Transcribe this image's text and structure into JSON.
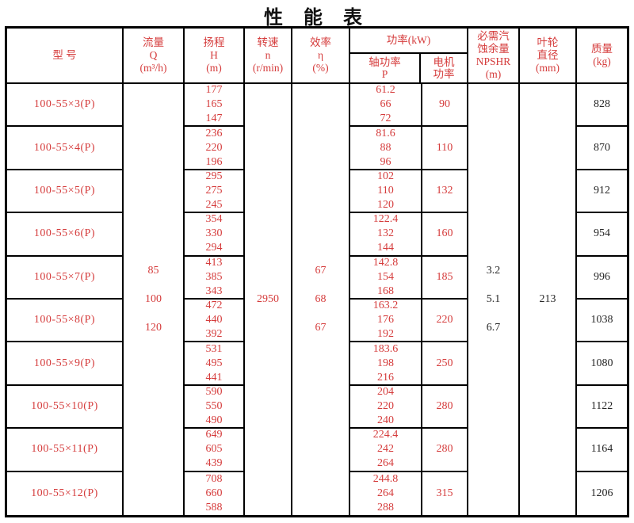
{
  "title": "性  能  表",
  "colors": {
    "accent_red": "#d53c3c",
    "text_black": "#262626",
    "border": "#000000"
  },
  "header": {
    "model": "型  号",
    "flow": [
      "流量",
      "Q",
      "(m³/h)"
    ],
    "head": [
      "扬程",
      "H",
      "(m)"
    ],
    "speed": [
      "转速",
      "n",
      "(r/min)"
    ],
    "efficiency": [
      "效率",
      "η",
      "(%)"
    ],
    "power_group": "功率(kW)",
    "shaft_power": [
      "轴功率",
      "P"
    ],
    "motor_power": [
      "电机",
      "功率"
    ],
    "npshr": [
      "必需汽",
      "蚀余量",
      "NPSHR",
      "(m)"
    ],
    "impeller": [
      "叶轮",
      "直径",
      "(mm)"
    ],
    "mass": [
      "质量",
      "(kg)"
    ]
  },
  "merged": {
    "flow_values": [
      "85",
      "100",
      "120"
    ],
    "speed_value": "2950",
    "efficiency_values": [
      "67",
      "68",
      "67"
    ],
    "npshr_values": [
      "3.2",
      "5.1",
      "6.7"
    ],
    "impeller_value": "213"
  },
  "rows": [
    {
      "model": "100-55×3(P)",
      "head": [
        "177",
        "165",
        "147"
      ],
      "shaft": [
        "61.2",
        "66",
        "72"
      ],
      "motor": "90",
      "mass": "828"
    },
    {
      "model": "100-55×4(P)",
      "head": [
        "236",
        "220",
        "196"
      ],
      "shaft": [
        "81.6",
        "88",
        "96"
      ],
      "motor": "110",
      "mass": "870"
    },
    {
      "model": "100-55×5(P)",
      "head": [
        "295",
        "275",
        "245"
      ],
      "shaft": [
        "102",
        "110",
        "120"
      ],
      "motor": "132",
      "mass": "912"
    },
    {
      "model": "100-55×6(P)",
      "head": [
        "354",
        "330",
        "294"
      ],
      "shaft": [
        "122.4",
        "132",
        "144"
      ],
      "motor": "160",
      "mass": "954"
    },
    {
      "model": "100-55×7(P)",
      "head": [
        "413",
        "385",
        "343"
      ],
      "shaft": [
        "142.8",
        "154",
        "168"
      ],
      "motor": "185",
      "mass": "996"
    },
    {
      "model": "100-55×8(P)",
      "head": [
        "472",
        "440",
        "392"
      ],
      "shaft": [
        "163.2",
        "176",
        "192"
      ],
      "motor": "220",
      "mass": "1038"
    },
    {
      "model": "100-55×9(P)",
      "head": [
        "531",
        "495",
        "441"
      ],
      "shaft": [
        "183.6",
        "198",
        "216"
      ],
      "motor": "250",
      "mass": "1080"
    },
    {
      "model": "100-55×10(P)",
      "head": [
        "590",
        "550",
        "490"
      ],
      "shaft": [
        "204",
        "220",
        "240"
      ],
      "motor": "280",
      "mass": "1122"
    },
    {
      "model": "100-55×11(P)",
      "head": [
        "649",
        "605",
        "439"
      ],
      "shaft": [
        "224.4",
        "242",
        "264"
      ],
      "motor": "280",
      "mass": "1164"
    },
    {
      "model": "100-55×12(P)",
      "head": [
        "708",
        "660",
        "588"
      ],
      "shaft": [
        "244.8",
        "264",
        "288"
      ],
      "motor": "315",
      "mass": "1206"
    }
  ]
}
